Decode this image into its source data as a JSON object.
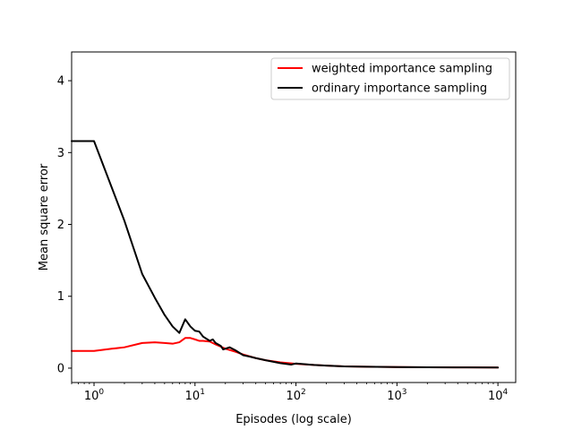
{
  "chart_data": {
    "type": "line",
    "title": "",
    "xlabel": "Episodes (log scale)",
    "ylabel": "Mean square error",
    "xscale": "log",
    "xlim": [
      0.6,
      15000
    ],
    "ylim": [
      -0.2,
      4.4
    ],
    "grid": false,
    "legend_position": "top-right",
    "x_ticks": [
      {
        "value": 1,
        "base": "10",
        "exp": "0"
      },
      {
        "value": 10,
        "base": "10",
        "exp": "1"
      },
      {
        "value": 100,
        "base": "10",
        "exp": "2"
      },
      {
        "value": 1000,
        "base": "10",
        "exp": "3"
      },
      {
        "value": 10000,
        "base": "10",
        "exp": "4"
      }
    ],
    "y_ticks": [
      {
        "value": 0,
        "label": "0"
      },
      {
        "value": 1,
        "label": "1"
      },
      {
        "value": 2,
        "label": "2"
      },
      {
        "value": 3,
        "label": "3"
      },
      {
        "value": 4,
        "label": "4"
      }
    ],
    "series": [
      {
        "name": "weighted importance sampling",
        "color": "#ff0000",
        "points": [
          [
            0.6,
            0.24
          ],
          [
            1,
            0.24
          ],
          [
            1.5,
            0.27
          ],
          [
            2,
            0.29
          ],
          [
            3,
            0.35
          ],
          [
            4,
            0.36
          ],
          [
            5,
            0.35
          ],
          [
            6,
            0.34
          ],
          [
            7,
            0.36
          ],
          [
            8,
            0.42
          ],
          [
            9,
            0.42
          ],
          [
            10,
            0.4
          ],
          [
            11,
            0.38
          ],
          [
            12,
            0.38
          ],
          [
            14,
            0.37
          ],
          [
            16,
            0.33
          ],
          [
            18,
            0.3
          ],
          [
            20,
            0.27
          ],
          [
            25,
            0.23
          ],
          [
            30,
            0.19
          ],
          [
            40,
            0.14
          ],
          [
            50,
            0.11
          ],
          [
            70,
            0.08
          ],
          [
            100,
            0.06
          ],
          [
            150,
            0.045
          ],
          [
            200,
            0.035
          ],
          [
            300,
            0.025
          ],
          [
            500,
            0.02
          ],
          [
            1000,
            0.015
          ],
          [
            2000,
            0.012
          ],
          [
            5000,
            0.01
          ],
          [
            10000,
            0.008
          ]
        ]
      },
      {
        "name": "ordinary importance sampling",
        "color": "#000000",
        "points": [
          [
            0.6,
            3.16
          ],
          [
            1,
            3.16
          ],
          [
            2,
            2.05
          ],
          [
            3,
            1.31
          ],
          [
            4,
            0.98
          ],
          [
            5,
            0.74
          ],
          [
            6,
            0.58
          ],
          [
            7,
            0.49
          ],
          [
            8,
            0.68
          ],
          [
            9,
            0.58
          ],
          [
            10,
            0.52
          ],
          [
            11,
            0.51
          ],
          [
            12,
            0.44
          ],
          [
            14,
            0.38
          ],
          [
            15,
            0.4
          ],
          [
            16,
            0.35
          ],
          [
            18,
            0.31
          ],
          [
            19,
            0.26
          ],
          [
            22,
            0.29
          ],
          [
            25,
            0.25
          ],
          [
            30,
            0.18
          ],
          [
            35,
            0.16
          ],
          [
            40,
            0.14
          ],
          [
            50,
            0.11
          ],
          [
            70,
            0.07
          ],
          [
            90,
            0.05
          ],
          [
            100,
            0.065
          ],
          [
            150,
            0.045
          ],
          [
            200,
            0.035
          ],
          [
            300,
            0.025
          ],
          [
            500,
            0.02
          ],
          [
            1000,
            0.015
          ],
          [
            2000,
            0.012
          ],
          [
            5000,
            0.01
          ],
          [
            10000,
            0.008
          ]
        ]
      }
    ]
  }
}
